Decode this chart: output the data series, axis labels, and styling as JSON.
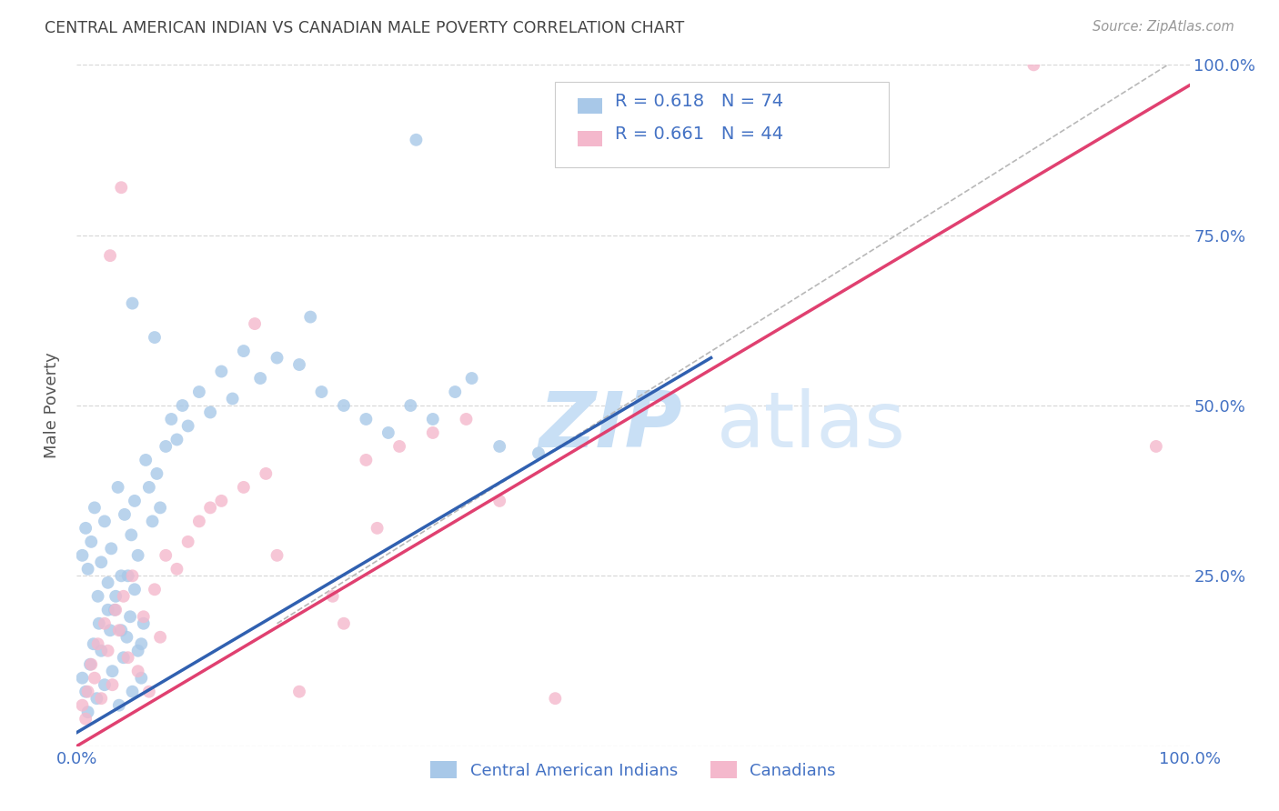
{
  "title": "CENTRAL AMERICAN INDIAN VS CANADIAN MALE POVERTY CORRELATION CHART",
  "source": "Source: ZipAtlas.com",
  "ylabel": "Male Poverty",
  "xlim": [
    0,
    1
  ],
  "ylim": [
    0,
    1
  ],
  "ytick_labels": [
    "",
    "25.0%",
    "50.0%",
    "75.0%",
    "100.0%"
  ],
  "ytick_positions": [
    0,
    0.25,
    0.5,
    0.75,
    1.0
  ],
  "blue_color": "#a8c8e8",
  "pink_color": "#f4b8cc",
  "blue_line_color": "#3060b0",
  "pink_line_color": "#e04070",
  "dashed_line_color": "#b8b8b8",
  "label_color": "#4472c4",
  "watermark_color_zip": "#c8dff5",
  "watermark_color_atlas": "#d8e8f8",
  "background_color": "#ffffff",
  "grid_color": "#d8d8d8",
  "title_color": "#444444",
  "axis_label_color": "#555555",
  "blue_line_x": [
    0.0,
    0.57
  ],
  "blue_line_y": [
    0.02,
    0.57
  ],
  "pink_line_x": [
    0.0,
    1.0
  ],
  "pink_line_y": [
    0.0,
    0.97
  ],
  "dashed_line_x": [
    0.18,
    1.0
  ],
  "dashed_line_y": [
    0.18,
    1.02
  ],
  "blue_scatter_x": [
    0.005,
    0.008,
    0.01,
    0.012,
    0.015,
    0.018,
    0.02,
    0.022,
    0.025,
    0.028,
    0.03,
    0.032,
    0.035,
    0.038,
    0.04,
    0.042,
    0.045,
    0.048,
    0.05,
    0.052,
    0.055,
    0.058,
    0.06,
    0.005,
    0.008,
    0.01,
    0.013,
    0.016,
    0.019,
    0.022,
    0.025,
    0.028,
    0.031,
    0.034,
    0.037,
    0.04,
    0.043,
    0.046,
    0.049,
    0.052,
    0.055,
    0.058,
    0.062,
    0.065,
    0.068,
    0.072,
    0.075,
    0.08,
    0.085,
    0.09,
    0.095,
    0.1,
    0.11,
    0.12,
    0.13,
    0.14,
    0.15,
    0.165,
    0.18,
    0.2,
    0.22,
    0.24,
    0.26,
    0.28,
    0.3,
    0.32,
    0.34,
    0.355,
    0.38,
    0.415,
    0.05,
    0.07,
    0.21,
    0.305
  ],
  "blue_scatter_y": [
    0.1,
    0.08,
    0.05,
    0.12,
    0.15,
    0.07,
    0.18,
    0.14,
    0.09,
    0.2,
    0.17,
    0.11,
    0.22,
    0.06,
    0.25,
    0.13,
    0.16,
    0.19,
    0.08,
    0.23,
    0.14,
    0.1,
    0.18,
    0.28,
    0.32,
    0.26,
    0.3,
    0.35,
    0.22,
    0.27,
    0.33,
    0.24,
    0.29,
    0.2,
    0.38,
    0.17,
    0.34,
    0.25,
    0.31,
    0.36,
    0.28,
    0.15,
    0.42,
    0.38,
    0.33,
    0.4,
    0.35,
    0.44,
    0.48,
    0.45,
    0.5,
    0.47,
    0.52,
    0.49,
    0.55,
    0.51,
    0.58,
    0.54,
    0.57,
    0.56,
    0.52,
    0.5,
    0.48,
    0.46,
    0.5,
    0.48,
    0.52,
    0.54,
    0.44,
    0.43,
    0.65,
    0.6,
    0.63,
    0.89
  ],
  "pink_scatter_x": [
    0.005,
    0.008,
    0.01,
    0.013,
    0.016,
    0.019,
    0.022,
    0.025,
    0.028,
    0.032,
    0.035,
    0.038,
    0.042,
    0.046,
    0.05,
    0.055,
    0.06,
    0.065,
    0.07,
    0.075,
    0.08,
    0.09,
    0.1,
    0.11,
    0.12,
    0.13,
    0.15,
    0.17,
    0.2,
    0.23,
    0.26,
    0.29,
    0.32,
    0.35,
    0.03,
    0.04,
    0.16,
    0.18,
    0.24,
    0.27,
    0.38,
    0.43,
    0.86,
    0.97
  ],
  "pink_scatter_y": [
    0.06,
    0.04,
    0.08,
    0.12,
    0.1,
    0.15,
    0.07,
    0.18,
    0.14,
    0.09,
    0.2,
    0.17,
    0.22,
    0.13,
    0.25,
    0.11,
    0.19,
    0.08,
    0.23,
    0.16,
    0.28,
    0.26,
    0.3,
    0.33,
    0.35,
    0.36,
    0.38,
    0.4,
    0.08,
    0.22,
    0.42,
    0.44,
    0.46,
    0.48,
    0.72,
    0.82,
    0.62,
    0.28,
    0.18,
    0.32,
    0.36,
    0.07,
    1.0,
    0.44
  ]
}
